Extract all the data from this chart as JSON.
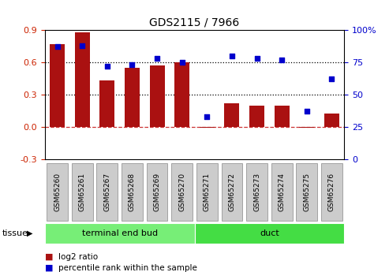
{
  "title": "GDS2115 / 7966",
  "categories": [
    "GSM65260",
    "GSM65261",
    "GSM65267",
    "GSM65268",
    "GSM65269",
    "GSM65270",
    "GSM65271",
    "GSM65272",
    "GSM65273",
    "GSM65274",
    "GSM65275",
    "GSM65276"
  ],
  "log2_ratio": [
    0.77,
    0.88,
    0.43,
    0.55,
    0.57,
    0.6,
    -0.01,
    0.22,
    0.2,
    0.2,
    -0.01,
    0.12
  ],
  "percentile_rank": [
    87,
    88,
    72,
    73,
    78,
    75,
    33,
    80,
    78,
    77,
    37,
    62
  ],
  "bar_color": "#aa1111",
  "dot_color": "#0000cc",
  "ylim_left": [
    -0.3,
    0.9
  ],
  "ylim_right": [
    0,
    100
  ],
  "yticks_left": [
    -0.3,
    0.0,
    0.3,
    0.6,
    0.9
  ],
  "yticks_right": [
    0,
    25,
    50,
    75,
    100
  ],
  "left_tick_color": "#cc2200",
  "right_tick_color": "#0000cc",
  "tissue_groups": [
    {
      "label": "terminal end bud",
      "start": 0,
      "end": 6,
      "color": "#77ee77"
    },
    {
      "label": "duct",
      "start": 6,
      "end": 12,
      "color": "#44dd44"
    }
  ],
  "tissue_label": "tissue",
  "legend_bar_label": "log2 ratio",
  "legend_dot_label": "percentile rank within the sample",
  "dotted_lines": [
    0.3,
    0.6
  ],
  "zero_line_color": "#cc3333",
  "label_box_color": "#cccccc",
  "label_box_edge": "#888888",
  "background_color": "#ffffff"
}
